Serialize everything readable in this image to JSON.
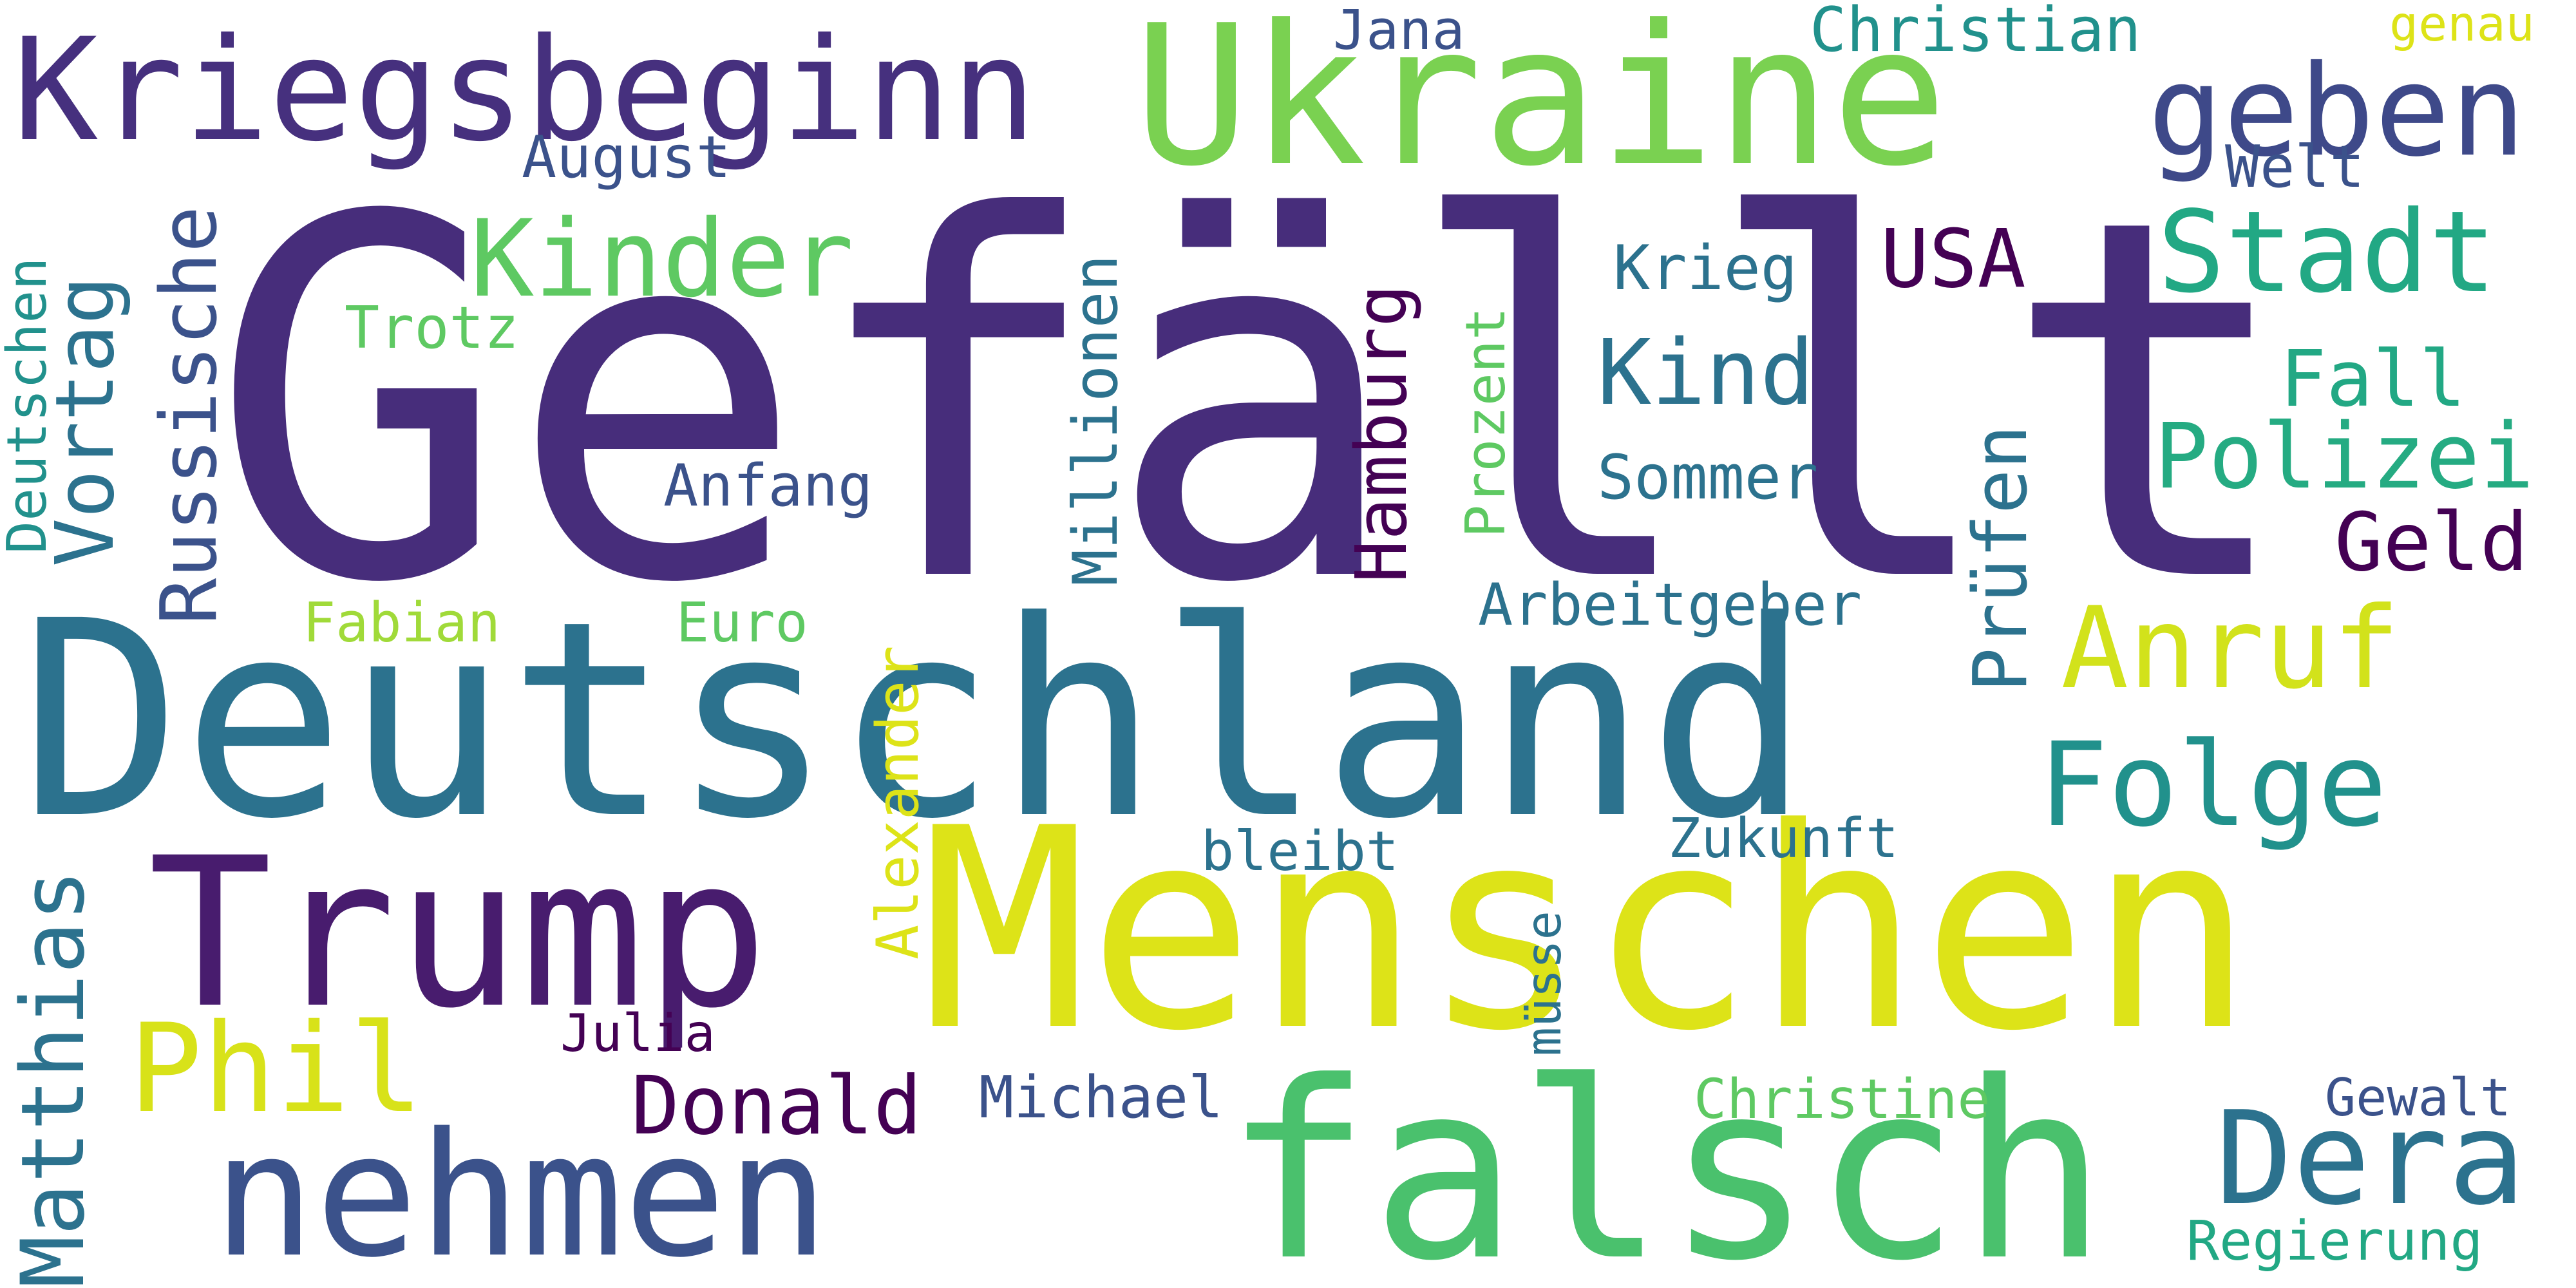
{
  "word_cloud": {
    "palette": {
      "dark_purple": "#440154",
      "indigo": "#472d7b",
      "slate_blue": "#3b528b",
      "steel_blue": "#2c728e",
      "teal": "#21918c",
      "green_teal": "#28ae80",
      "green": "#5ec962",
      "lime": "#addc30",
      "yellow": "#fde725",
      "yellow_green": "#dde318"
    },
    "words": {
      "gefaellt": "Gefällt",
      "deutschland": "Deutschland",
      "menschen": "Menschen",
      "ukraine": "Ukraine",
      "falsch": "falsch",
      "nehmen": "nehmen",
      "trump": "Trump",
      "kriegsbeginn": "Kriegsbeginn",
      "geben": "geben",
      "kinder": "Kinder",
      "stadt": "Stadt",
      "anruf": "Anruf",
      "folge": "Folge",
      "dera": "Dera",
      "phil": "Phil",
      "polizei": "Polizei",
      "kind": "Kind",
      "donald": "Donald",
      "usa": "USA",
      "fall": "Fall",
      "geld": "Geld",
      "jana": "Jana",
      "christian": "Christian",
      "genau": "genau",
      "august": "August",
      "welt": "Welt",
      "krieg": "Krieg",
      "trotz": "Trotz",
      "anfang": "Anfang",
      "sommer": "Sommer",
      "arbeitgeber": "Arbeitgeber",
      "fabian": "Fabian",
      "euro": "Euro",
      "bleibt": "bleibt",
      "zukunft": "Zukunft",
      "julia": "Julia",
      "michael": "Michael",
      "christine": "Christine",
      "gewalt": "Gewalt",
      "regierung": "Regierung",
      "vortag": "Vortag",
      "russische": "Russische",
      "deutschen": "Deutschen",
      "hamburg": "Hamburg",
      "millionen": "Millionen",
      "prozent": "Prozent",
      "pruefen": "Prüfen",
      "matthias": "Matthias",
      "alexander": "Alexander",
      "muesse": "müsse"
    }
  }
}
